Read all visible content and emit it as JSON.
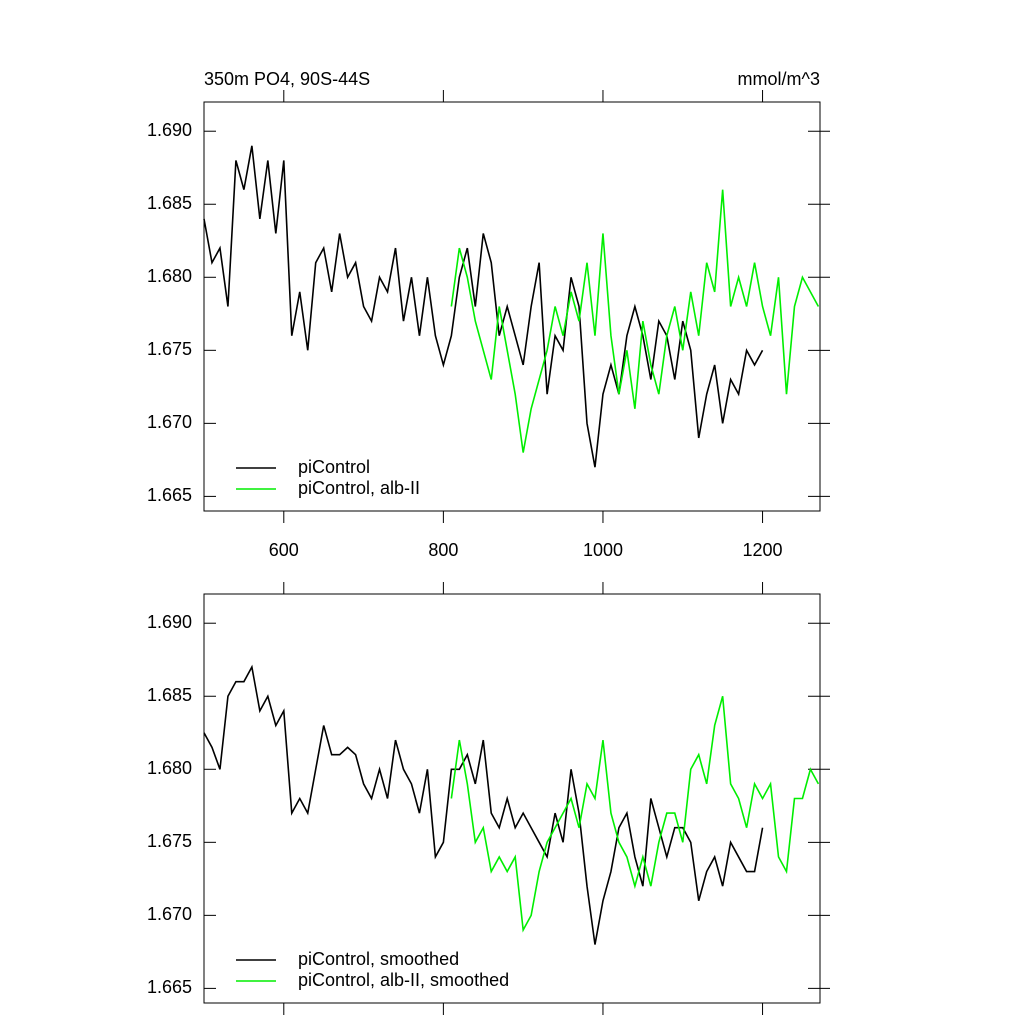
{
  "chart_data": [
    {
      "type": "line",
      "title": "350m PO4, 90S-44S",
      "units": "mmol/m^3",
      "xlim": [
        500,
        1272
      ],
      "xticks": [
        600,
        800,
        1000,
        1200
      ],
      "xtick_labels": true,
      "ylim": [
        1.664,
        1.692
      ],
      "yticks": [
        {
          "value": 1.665,
          "label": "1.665"
        },
        {
          "value": 1.67,
          "label": "1.670"
        },
        {
          "value": 1.675,
          "label": "1.675"
        },
        {
          "value": 1.68,
          "label": "1.680"
        },
        {
          "value": 1.685,
          "label": "1.685"
        },
        {
          "value": 1.69,
          "label": "1.690"
        }
      ],
      "legend": "lower left",
      "series": [
        {
          "name": "piControl",
          "color": "#000000",
          "x": [
            500,
            510,
            520,
            530,
            540,
            550,
            560,
            570,
            580,
            590,
            600,
            610,
            620,
            630,
            640,
            650,
            660,
            670,
            680,
            690,
            700,
            710,
            720,
            730,
            740,
            750,
            760,
            770,
            780,
            790,
            800,
            810,
            820,
            830,
            840,
            850,
            860,
            870,
            880,
            890,
            900,
            910,
            920,
            930,
            940,
            950,
            960,
            970,
            980,
            990,
            1000,
            1010,
            1020,
            1030,
            1040,
            1050,
            1060,
            1070,
            1080,
            1090,
            1100,
            1110,
            1120,
            1130,
            1140,
            1150,
            1160,
            1170,
            1180,
            1190,
            1200
          ],
          "values": [
            1.684,
            1.681,
            1.682,
            1.678,
            1.688,
            1.686,
            1.689,
            1.684,
            1.688,
            1.683,
            1.688,
            1.676,
            1.679,
            1.675,
            1.681,
            1.682,
            1.679,
            1.683,
            1.68,
            1.681,
            1.678,
            1.677,
            1.68,
            1.679,
            1.682,
            1.677,
            1.68,
            1.676,
            1.68,
            1.676,
            1.674,
            1.676,
            1.68,
            1.682,
            1.678,
            1.683,
            1.681,
            1.676,
            1.678,
            1.676,
            1.674,
            1.678,
            1.681,
            1.672,
            1.676,
            1.675,
            1.68,
            1.678,
            1.67,
            1.667,
            1.672,
            1.674,
            1.672,
            1.676,
            1.678,
            1.676,
            1.673,
            1.677,
            1.676,
            1.673,
            1.677,
            1.675,
            1.669,
            1.672,
            1.674,
            1.67,
            1.673,
            1.672,
            1.675,
            1.674,
            1.675
          ]
        },
        {
          "name": "piControl, alb-II",
          "color": "#00ee00",
          "x": [
            810,
            820,
            830,
            840,
            850,
            860,
            870,
            880,
            890,
            900,
            910,
            920,
            930,
            940,
            950,
            960,
            970,
            980,
            990,
            1000,
            1010,
            1020,
            1030,
            1040,
            1050,
            1060,
            1070,
            1080,
            1090,
            1100,
            1110,
            1120,
            1130,
            1140,
            1150,
            1160,
            1170,
            1180,
            1190,
            1200,
            1210,
            1220,
            1230,
            1240,
            1250,
            1260,
            1270
          ],
          "values": [
            1.678,
            1.682,
            1.68,
            1.677,
            1.675,
            1.673,
            1.678,
            1.675,
            1.672,
            1.668,
            1.671,
            1.673,
            1.675,
            1.678,
            1.676,
            1.679,
            1.677,
            1.681,
            1.676,
            1.683,
            1.676,
            1.672,
            1.675,
            1.671,
            1.677,
            1.674,
            1.672,
            1.676,
            1.678,
            1.675,
            1.679,
            1.676,
            1.681,
            1.679,
            1.686,
            1.678,
            1.68,
            1.678,
            1.681,
            1.678,
            1.676,
            1.68,
            1.672,
            1.678,
            1.68,
            1.679,
            1.678
          ]
        }
      ]
    },
    {
      "type": "line",
      "xlim": [
        500,
        1272
      ],
      "xticks": [
        600,
        800,
        1000,
        1200
      ],
      "xtick_labels": false,
      "ylim": [
        1.664,
        1.692
      ],
      "yticks": [
        {
          "value": 1.665,
          "label": "1.665"
        },
        {
          "value": 1.67,
          "label": "1.670"
        },
        {
          "value": 1.675,
          "label": "1.675"
        },
        {
          "value": 1.68,
          "label": "1.680"
        },
        {
          "value": 1.685,
          "label": "1.685"
        },
        {
          "value": 1.69,
          "label": "1.690"
        }
      ],
      "legend": "lower left",
      "series": [
        {
          "name": "piControl, smoothed",
          "color": "#000000",
          "x": [
            500,
            510,
            520,
            530,
            540,
            550,
            560,
            570,
            580,
            590,
            600,
            610,
            620,
            630,
            640,
            650,
            660,
            670,
            680,
            690,
            700,
            710,
            720,
            730,
            740,
            750,
            760,
            770,
            780,
            790,
            800,
            810,
            820,
            830,
            840,
            850,
            860,
            870,
            880,
            890,
            900,
            910,
            920,
            930,
            940,
            950,
            960,
            970,
            980,
            990,
            1000,
            1010,
            1020,
            1030,
            1040,
            1050,
            1060,
            1070,
            1080,
            1090,
            1100,
            1110,
            1120,
            1130,
            1140,
            1150,
            1160,
            1170,
            1180,
            1190,
            1200
          ],
          "values": [
            1.6825,
            1.6815,
            1.68,
            1.685,
            1.686,
            1.686,
            1.687,
            1.684,
            1.685,
            1.683,
            1.684,
            1.677,
            1.678,
            1.677,
            1.68,
            1.683,
            1.681,
            1.681,
            1.6815,
            1.681,
            1.679,
            1.678,
            1.68,
            1.678,
            1.682,
            1.68,
            1.679,
            1.677,
            1.68,
            1.674,
            1.675,
            1.68,
            1.68,
            1.681,
            1.679,
            1.682,
            1.677,
            1.676,
            1.678,
            1.676,
            1.677,
            1.676,
            1.675,
            1.674,
            1.677,
            1.675,
            1.68,
            1.677,
            1.672,
            1.668,
            1.671,
            1.673,
            1.676,
            1.677,
            1.674,
            1.672,
            1.678,
            1.676,
            1.674,
            1.676,
            1.676,
            1.675,
            1.671,
            1.673,
            1.674,
            1.672,
            1.675,
            1.674,
            1.673,
            1.673,
            1.676
          ]
        },
        {
          "name": "piControl, alb-II, smoothed",
          "color": "#00ee00",
          "x": [
            810,
            820,
            830,
            840,
            850,
            860,
            870,
            880,
            890,
            900,
            910,
            920,
            930,
            940,
            950,
            960,
            970,
            980,
            990,
            1000,
            1010,
            1020,
            1030,
            1040,
            1050,
            1060,
            1070,
            1080,
            1090,
            1100,
            1110,
            1120,
            1130,
            1140,
            1150,
            1160,
            1170,
            1180,
            1190,
            1200,
            1210,
            1220,
            1230,
            1240,
            1250,
            1260,
            1270
          ],
          "values": [
            1.678,
            1.682,
            1.679,
            1.675,
            1.676,
            1.673,
            1.674,
            1.673,
            1.674,
            1.669,
            1.67,
            1.673,
            1.675,
            1.676,
            1.677,
            1.678,
            1.676,
            1.679,
            1.678,
            1.682,
            1.677,
            1.675,
            1.674,
            1.672,
            1.674,
            1.672,
            1.675,
            1.677,
            1.677,
            1.675,
            1.68,
            1.681,
            1.679,
            1.683,
            1.685,
            1.679,
            1.678,
            1.676,
            1.679,
            1.678,
            1.679,
            1.674,
            1.673,
            1.678,
            1.678,
            1.68,
            1.679
          ]
        }
      ]
    }
  ]
}
